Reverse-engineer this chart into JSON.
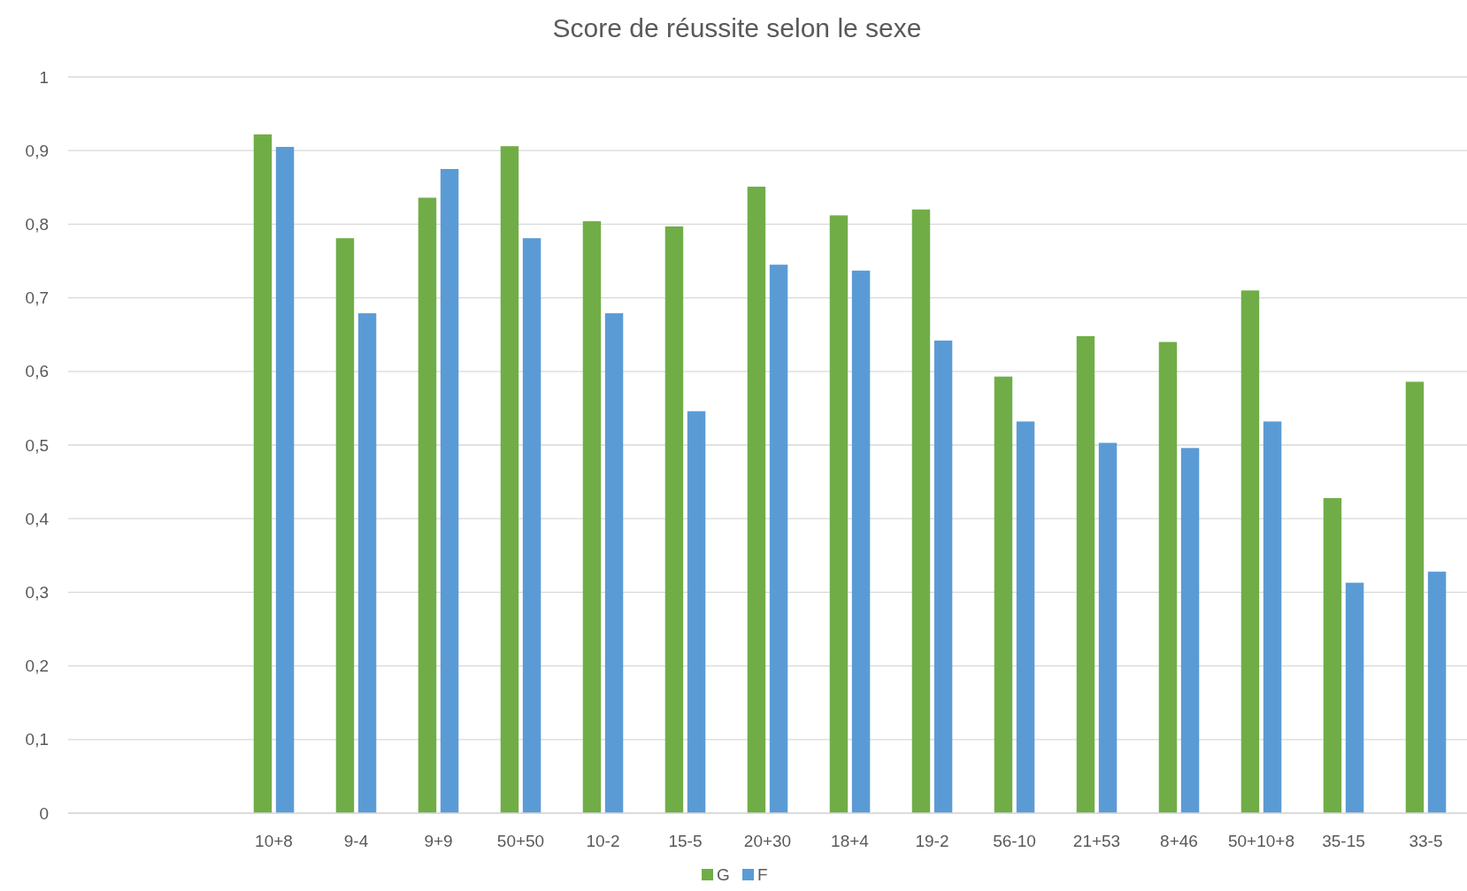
{
  "chart_data": {
    "type": "bar",
    "title": "Score de réussite selon le sexe",
    "categories": [
      null,
      null,
      "10+8",
      "9-4",
      "9+9",
      "50+50",
      "10-2",
      "15-5",
      "20+30",
      "18+4",
      "19-2",
      "56-10",
      "21+53",
      "8+46",
      "50+10+8",
      "35-15",
      "33-5"
    ],
    "series": [
      {
        "name": "G",
        "color": "#70ad47",
        "values": [
          null,
          null,
          0.922,
          0.781,
          0.836,
          0.906,
          0.804,
          0.797,
          0.851,
          0.812,
          0.82,
          0.593,
          0.648,
          0.64,
          0.71,
          0.428,
          0.586
        ]
      },
      {
        "name": "F",
        "color": "#5b9bd5",
        "values": [
          null,
          null,
          0.905,
          0.679,
          0.875,
          0.781,
          0.679,
          0.546,
          0.745,
          0.737,
          0.642,
          0.532,
          0.503,
          0.496,
          0.532,
          0.313,
          0.328
        ]
      }
    ],
    "ylim": [
      0,
      1
    ],
    "yticks": [
      0,
      {
        "value": 0.1,
        "label": "0,1"
      },
      {
        "value": 0.2,
        "label": "0,2"
      },
      {
        "value": 0.3,
        "label": "0,3"
      },
      {
        "value": 0.4,
        "label": "0,4"
      },
      {
        "value": 0.5,
        "label": "0,5"
      },
      {
        "value": 0.6,
        "label": "0,6"
      },
      {
        "value": 0.7,
        "label": "0,7"
      },
      {
        "value": 0.8,
        "label": "0,8"
      },
      {
        "value": 0.9,
        "label": "0,9"
      },
      1
    ],
    "grid": "y",
    "legend": "bottom"
  }
}
